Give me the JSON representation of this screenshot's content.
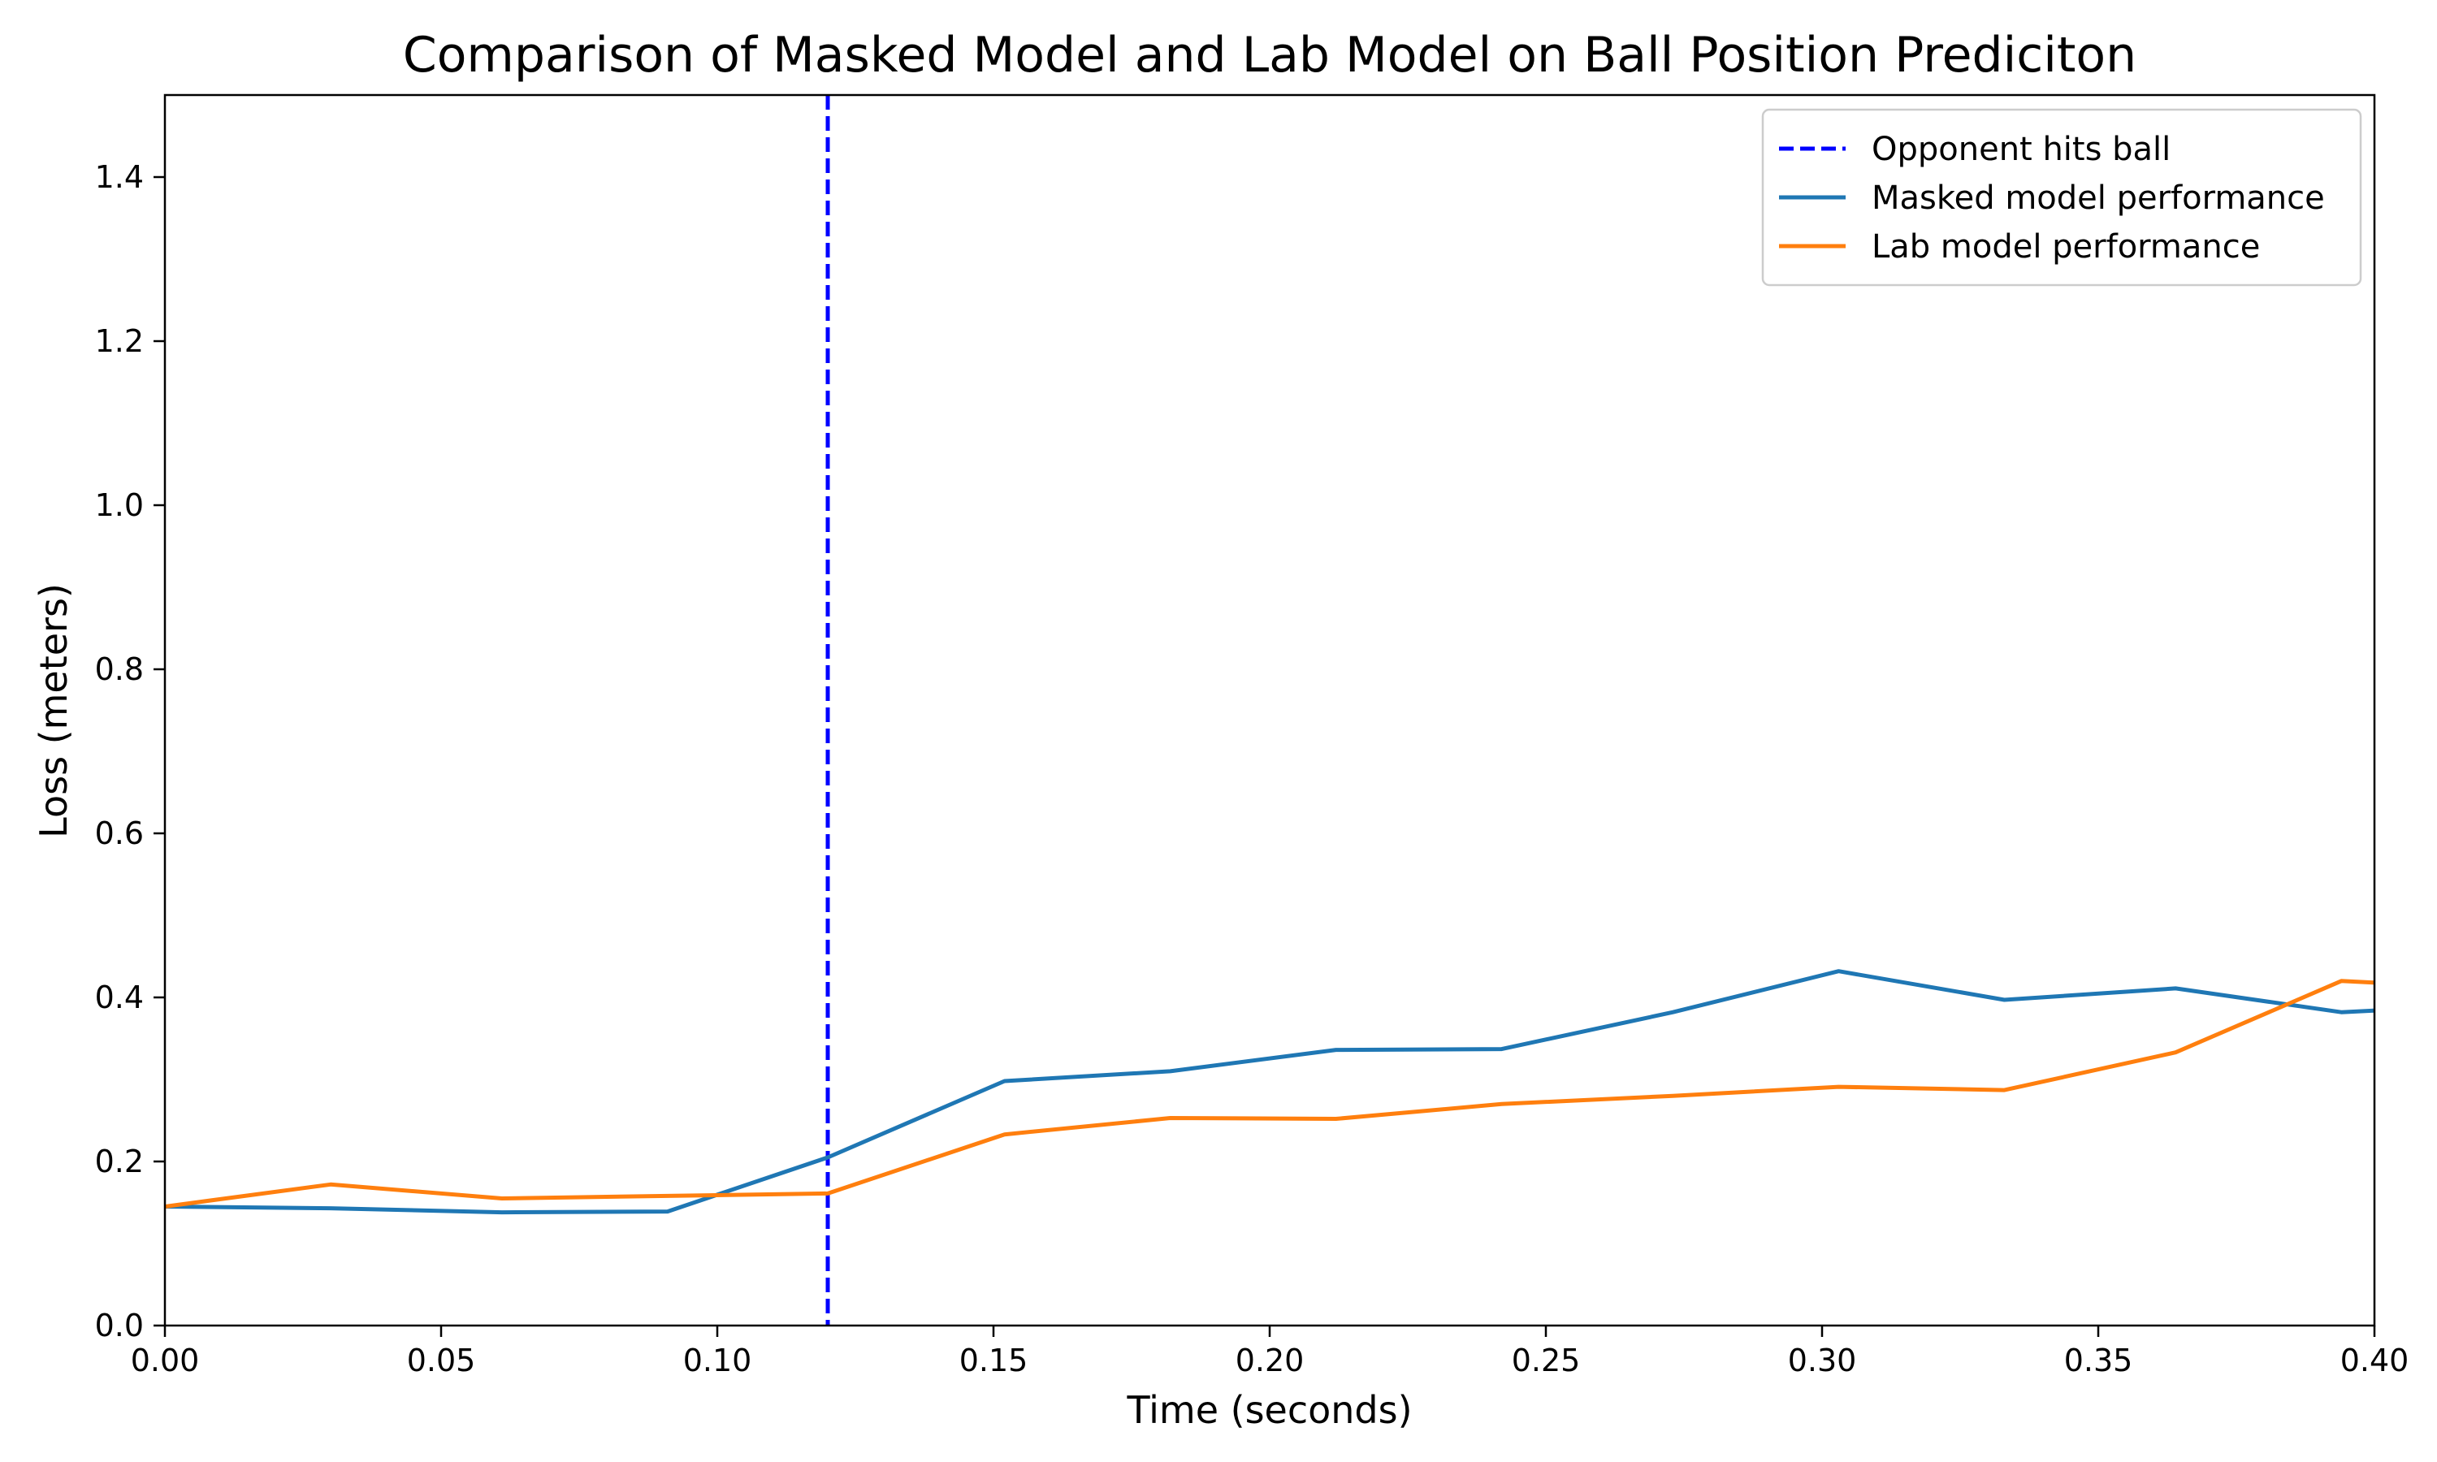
{
  "chart_data": {
    "type": "line",
    "title": "Comparison of Masked Model and Lab Model on Ball Position Prediciton",
    "xlabel": "Time (seconds)",
    "ylabel": "Loss (meters)",
    "xlim": [
      0.0,
      0.4
    ],
    "ylim": [
      0.0,
      1.5
    ],
    "xticks": [
      "0.00",
      "0.05",
      "0.10",
      "0.15",
      "0.20",
      "0.25",
      "0.30",
      "0.35",
      "0.40"
    ],
    "yticks": [
      "0.0",
      "0.2",
      "0.4",
      "0.6",
      "0.8",
      "1.0",
      "1.2",
      "1.4"
    ],
    "grid": false,
    "legend_position": "top-right",
    "vline": {
      "name": "Opponent hits ball",
      "x": 0.12,
      "color": "#0000ff",
      "style": "dashed"
    },
    "series": [
      {
        "name": "Masked model performance",
        "color": "#1f77b4",
        "x": [
          0.0,
          0.03,
          0.061,
          0.091,
          0.12,
          0.152,
          0.182,
          0.212,
          0.242,
          0.273,
          0.303,
          0.333,
          0.364,
          0.394,
          0.4
        ],
        "values": [
          0.145,
          0.143,
          0.138,
          0.139,
          0.205,
          0.298,
          0.31,
          0.336,
          0.337,
          0.382,
          0.432,
          0.397,
          0.411,
          0.382,
          0.384
        ]
      },
      {
        "name": "Lab model performance",
        "color": "#ff7f0e",
        "x": [
          0.0,
          0.03,
          0.061,
          0.091,
          0.12,
          0.152,
          0.182,
          0.212,
          0.242,
          0.273,
          0.303,
          0.333,
          0.364,
          0.394,
          0.4
        ],
        "values": [
          0.145,
          0.172,
          0.155,
          0.158,
          0.161,
          0.233,
          0.253,
          0.252,
          0.27,
          0.28,
          0.291,
          0.287,
          0.333,
          0.42,
          0.418
        ]
      }
    ]
  }
}
